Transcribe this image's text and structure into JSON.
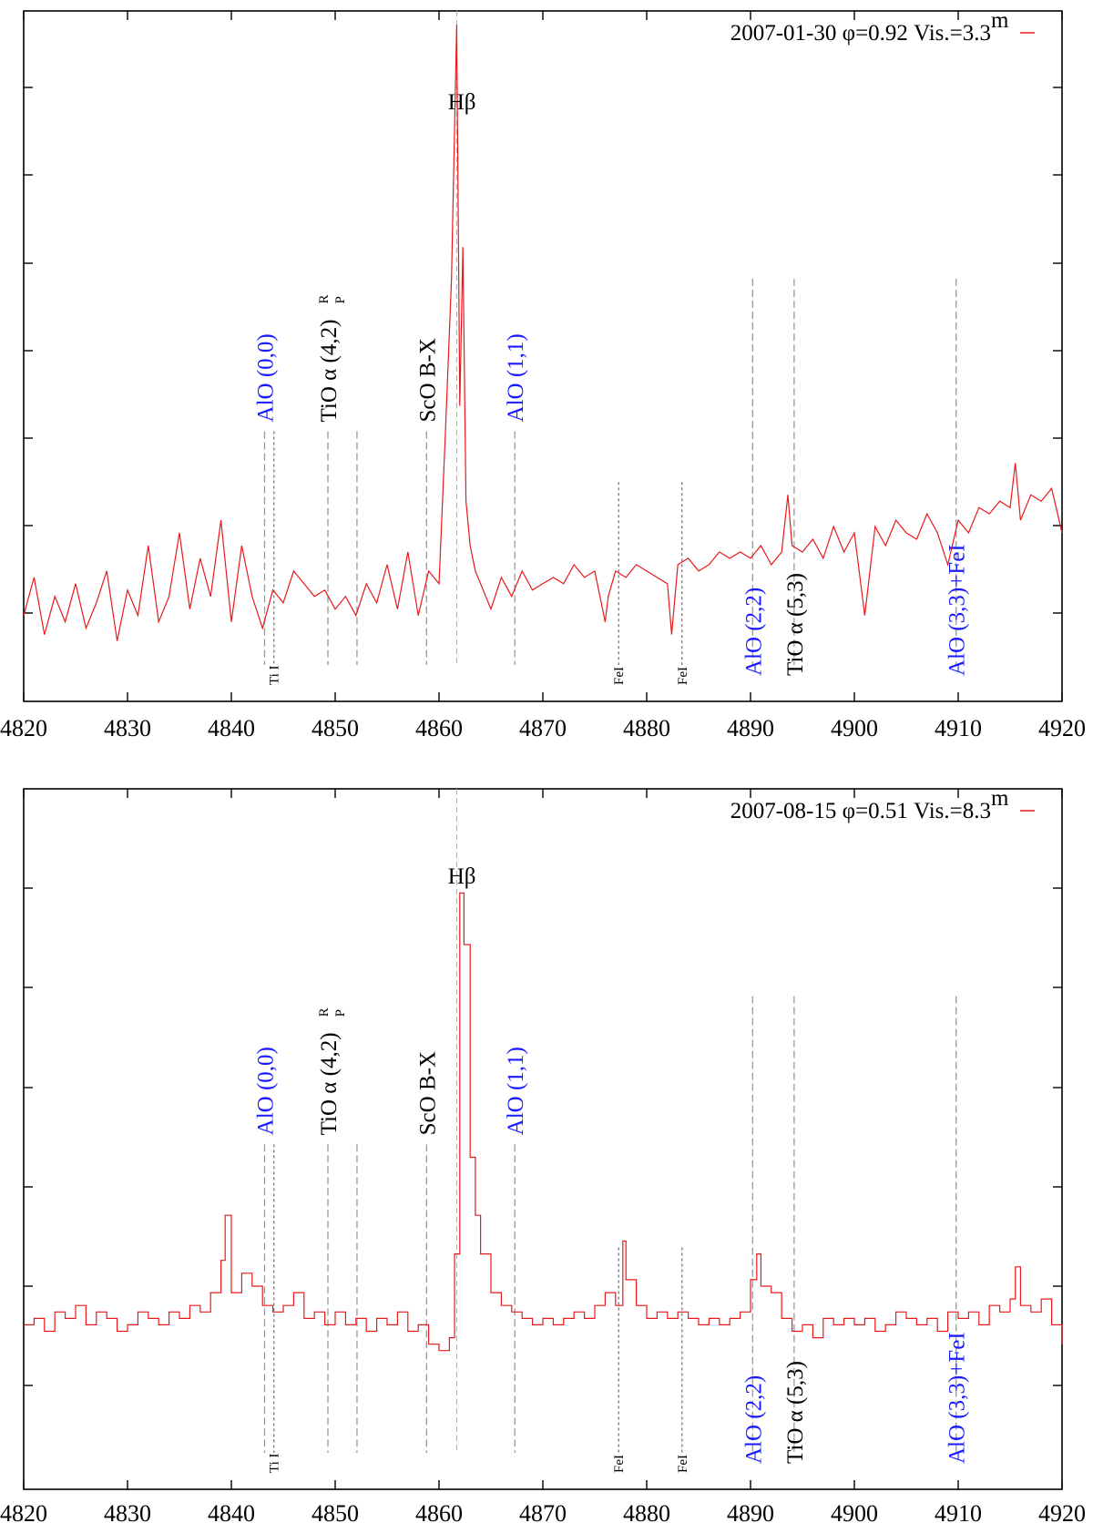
{
  "chart_data": [
    {
      "type": "line",
      "legend": "2007-01-30 φ=0.92 Vis.=3.3",
      "legend_sup": "m",
      "legend_placement": "top-right",
      "xlim": [
        4820,
        4920
      ],
      "x_ticks": [
        "4820",
        "4830",
        "4840",
        "4850",
        "4860",
        "4870",
        "4880",
        "4890",
        "4900",
        "4910",
        "4920"
      ],
      "ylim": [
        0,
        1
      ],
      "grid": false,
      "series": [
        {
          "color": "#e8191c",
          "x": [
            4820,
            4821,
            4822,
            4823,
            4824,
            4825,
            4826,
            4827,
            4828,
            4829,
            4830,
            4831,
            4832,
            4833,
            4834,
            4835,
            4836,
            4837,
            4838,
            4839,
            4840,
            4841,
            4842,
            4843,
            4844,
            4845,
            4846,
            4847,
            4848,
            4849,
            4850,
            4851,
            4852,
            4853,
            4854,
            4855,
            4856,
            4857,
            4858,
            4859,
            4860,
            4860.6,
            4861.2,
            4861.7,
            4862,
            4862.3,
            4862.6,
            4863,
            4863.5,
            4864,
            4865,
            4866,
            4867,
            4868,
            4869,
            4870,
            4871,
            4872,
            4873,
            4874,
            4875,
            4876,
            4876.3,
            4877,
            4878,
            4879,
            4880,
            4881,
            4882,
            4882.4,
            4883,
            4884,
            4885,
            4886,
            4887,
            4888,
            4889,
            4890,
            4891,
            4892,
            4893,
            4893.6,
            4894,
            4895,
            4896,
            4897,
            4898,
            4899,
            4900,
            4901,
            4902,
            4903,
            4904,
            4905,
            4906,
            4907,
            4908,
            4909,
            4910,
            4911,
            4912,
            4913,
            4914,
            4915,
            4915.5,
            4916,
            4917,
            4918,
            4919,
            4920
          ],
          "y": [
            0.07,
            0.13,
            0.04,
            0.1,
            0.06,
            0.12,
            0.05,
            0.09,
            0.14,
            0.03,
            0.11,
            0.07,
            0.18,
            0.06,
            0.1,
            0.2,
            0.08,
            0.16,
            0.1,
            0.22,
            0.06,
            0.18,
            0.1,
            0.05,
            0.11,
            0.09,
            0.14,
            0.12,
            0.1,
            0.11,
            0.08,
            0.1,
            0.07,
            0.12,
            0.09,
            0.15,
            0.08,
            0.17,
            0.07,
            0.14,
            0.12,
            0.35,
            0.6,
            1.0,
            0.4,
            0.65,
            0.25,
            0.18,
            0.14,
            0.12,
            0.08,
            0.13,
            0.1,
            0.14,
            0.11,
            0.12,
            0.13,
            0.12,
            0.15,
            0.13,
            0.14,
            0.06,
            0.1,
            0.14,
            0.13,
            0.15,
            0.14,
            0.13,
            0.12,
            0.04,
            0.15,
            0.16,
            0.14,
            0.15,
            0.17,
            0.16,
            0.17,
            0.16,
            0.18,
            0.15,
            0.17,
            0.26,
            0.18,
            0.17,
            0.19,
            0.16,
            0.21,
            0.17,
            0.2,
            0.07,
            0.21,
            0.18,
            0.22,
            0.2,
            0.19,
            0.23,
            0.2,
            0.15,
            0.22,
            0.2,
            0.24,
            0.23,
            0.25,
            0.24,
            0.31,
            0.22,
            0.26,
            0.25,
            0.27,
            0.2
          ]
        }
      ],
      "lines": [
        {
          "x": 4843.2,
          "label": "AlO (0,0)",
          "color": "blue",
          "dash": "long",
          "ytop": 0.36
        },
        {
          "x": 4844.1,
          "label": "Ti I",
          "color": "black",
          "dash": "short",
          "ytop": 0.36,
          "small": true
        },
        {
          "x": 4849.3,
          "label": "TiO α (4,2)",
          "sup": "R",
          "sub": "P",
          "color": "black",
          "dash": "long",
          "ytop": 0.36
        },
        {
          "x": 4852.1,
          "label": "",
          "color": "black",
          "dash": "long",
          "ytop": 0.36
        },
        {
          "x": 4858.8,
          "label": "ScO B-X",
          "color": "black",
          "dash": "long",
          "ytop": 0.36
        },
        {
          "x": 4867.3,
          "label": "AlO (1,1)",
          "color": "blue",
          "dash": "long",
          "ytop": 0.36
        },
        {
          "x": 4877.3,
          "label": "FeI",
          "color": "black",
          "dash": "short",
          "ytop": 0.28,
          "small": true
        },
        {
          "x": 4883.4,
          "label": "FeI",
          "color": "black",
          "dash": "short",
          "ytop": 0.28,
          "small": true
        },
        {
          "x": 4890.2,
          "label": "AlO (2,2)",
          "color": "blue",
          "dash": "long",
          "ytop": 0.6
        },
        {
          "x": 4894.2,
          "label": "TiO α (5,3)",
          "color": "black",
          "dash": "long",
          "ytop": 0.6
        },
        {
          "x": 4909.8,
          "label": "AlO (3,3)+FeI",
          "color": "blue",
          "dash": "long",
          "ytop": 0.6
        }
      ],
      "peak_label": "Hβ"
    },
    {
      "type": "line",
      "legend": "2007-08-15 φ=0.51 Vis.=8.3",
      "legend_sup": "m",
      "legend_placement": "top-right",
      "xlim": [
        4820,
        4920
      ],
      "x_ticks": [
        "4820",
        "4830",
        "4840",
        "4850",
        "4860",
        "4870",
        "4880",
        "4890",
        "4900",
        "4910",
        "4920"
      ],
      "ylim": [
        0,
        1
      ],
      "grid": false,
      "series": [
        {
          "color": "#e8191c",
          "x": [
            4820,
            4821,
            4822,
            4823,
            4824,
            4825,
            4826,
            4827,
            4828,
            4829,
            4830,
            4831,
            4832,
            4833,
            4834,
            4835,
            4836,
            4837,
            4838,
            4839,
            4839.4,
            4840,
            4841,
            4842,
            4843,
            4844,
            4845,
            4846,
            4847,
            4848,
            4849,
            4850,
            4851,
            4852,
            4853,
            4854,
            4855,
            4856,
            4857,
            4858,
            4859,
            4860,
            4861,
            4861.5,
            4862,
            4862.4,
            4863,
            4863.5,
            4864,
            4865,
            4866,
            4867,
            4868,
            4869,
            4870,
            4871,
            4872,
            4873,
            4874,
            4875,
            4876,
            4877,
            4877.7,
            4878,
            4879,
            4880,
            4881,
            4882,
            4883,
            4884,
            4885,
            4886,
            4887,
            4888,
            4889,
            4890,
            4890.6,
            4891,
            4892,
            4893,
            4894,
            4895,
            4896,
            4897,
            4898,
            4899,
            4900,
            4901,
            4902,
            4903,
            4904,
            4905,
            4906,
            4907,
            4908,
            4909,
            4910,
            4911,
            4912,
            4913,
            4914,
            4915,
            4915.5,
            4916,
            4917,
            4918,
            4919,
            4920
          ],
          "y": [
            0.19,
            0.2,
            0.18,
            0.21,
            0.2,
            0.22,
            0.19,
            0.21,
            0.2,
            0.18,
            0.19,
            0.21,
            0.2,
            0.19,
            0.21,
            0.2,
            0.22,
            0.21,
            0.24,
            0.29,
            0.36,
            0.24,
            0.27,
            0.25,
            0.22,
            0.21,
            0.22,
            0.24,
            0.2,
            0.21,
            0.19,
            0.21,
            0.19,
            0.2,
            0.18,
            0.2,
            0.19,
            0.21,
            0.18,
            0.19,
            0.16,
            0.15,
            0.17,
            0.3,
            0.86,
            0.78,
            0.45,
            0.36,
            0.3,
            0.24,
            0.22,
            0.21,
            0.2,
            0.19,
            0.2,
            0.19,
            0.2,
            0.21,
            0.2,
            0.22,
            0.24,
            0.22,
            0.32,
            0.26,
            0.22,
            0.2,
            0.21,
            0.2,
            0.21,
            0.2,
            0.19,
            0.2,
            0.19,
            0.2,
            0.21,
            0.26,
            0.3,
            0.25,
            0.24,
            0.2,
            0.18,
            0.19,
            0.17,
            0.2,
            0.19,
            0.2,
            0.19,
            0.2,
            0.18,
            0.19,
            0.21,
            0.2,
            0.19,
            0.2,
            0.18,
            0.21,
            0.2,
            0.21,
            0.19,
            0.22,
            0.21,
            0.23,
            0.28,
            0.22,
            0.21,
            0.23,
            0.19,
            0.16
          ]
        }
      ],
      "lines": [
        {
          "x": 4843.2,
          "label": "AlO (0,0)",
          "color": "blue",
          "dash": "long",
          "ytop": 0.47
        },
        {
          "x": 4844.1,
          "label": "Ti I",
          "color": "black",
          "dash": "short",
          "ytop": 0.47,
          "small": true
        },
        {
          "x": 4849.3,
          "label": "TiO α (4,2)",
          "sup": "R",
          "sub": "P",
          "color": "black",
          "dash": "long",
          "ytop": 0.47
        },
        {
          "x": 4852.1,
          "label": "",
          "color": "black",
          "dash": "long",
          "ytop": 0.47
        },
        {
          "x": 4858.8,
          "label": "ScO B-X",
          "color": "black",
          "dash": "long",
          "ytop": 0.47
        },
        {
          "x": 4867.3,
          "label": "AlO (1,1)",
          "color": "blue",
          "dash": "long",
          "ytop": 0.47
        },
        {
          "x": 4877.3,
          "label": "FeI",
          "color": "black",
          "dash": "short",
          "ytop": 0.31,
          "small": true
        },
        {
          "x": 4883.4,
          "label": "FeI",
          "color": "black",
          "dash": "short",
          "ytop": 0.31,
          "small": true
        },
        {
          "x": 4890.2,
          "label": "AlO (2,2)",
          "color": "blue",
          "dash": "long",
          "ytop": 0.7
        },
        {
          "x": 4894.2,
          "label": "TiO α (5,3)",
          "color": "black",
          "dash": "long",
          "ytop": 0.7
        },
        {
          "x": 4909.8,
          "label": "AlO (3,3)+FeI",
          "color": "blue",
          "dash": "long",
          "ytop": 0.7
        }
      ],
      "peak_label": "Hβ"
    }
  ]
}
